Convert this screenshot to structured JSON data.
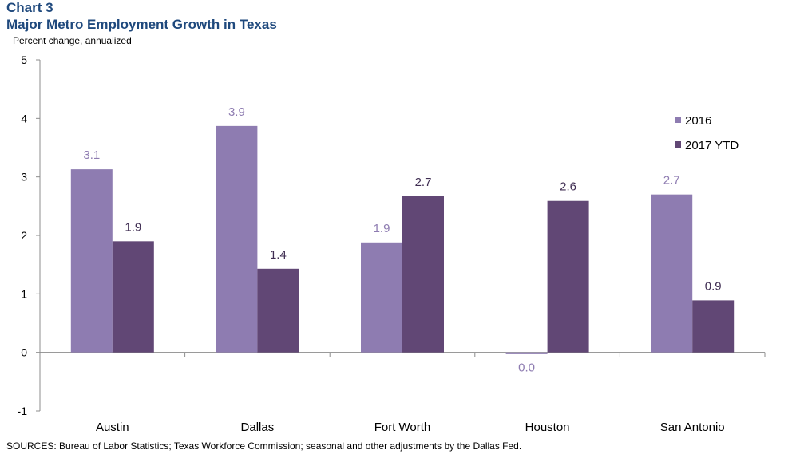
{
  "header": {
    "chart_number": "Chart 3",
    "title": "Major Metro Employment Growth in Texas",
    "unit": "Percent change, annualized"
  },
  "footer": {
    "source": "SOURCES: Bureau of  Labor Statistics; Texas Workforce Commission; seasonal and other adjustments by the Dallas Fed."
  },
  "chart_data": {
    "type": "bar",
    "title": "Major Metro Employment Growth in Texas",
    "ylabel": "Percent change, annualized",
    "xlabel": "",
    "ylim": [
      -1,
      5
    ],
    "yticks": [
      -1,
      0,
      1,
      2,
      3,
      4,
      5
    ],
    "grid": false,
    "legend_position": "right",
    "categories": [
      "Austin",
      "Dallas",
      "Fort Worth",
      "Houston",
      "San Antonio"
    ],
    "series": [
      {
        "name": "2016",
        "color": "#8E7CB1",
        "label_color": "#8E7CB1",
        "values": [
          3.13,
          3.87,
          1.88,
          -0.03,
          2.7
        ],
        "labels": [
          "3.1",
          "3.9",
          "1.9",
          "0.0",
          "2.7"
        ]
      },
      {
        "name": "2017 YTD",
        "color": "#614775",
        "label_color": "#3F2D52",
        "values": [
          1.9,
          1.43,
          2.67,
          2.59,
          0.89
        ],
        "labels": [
          "1.9",
          "1.4",
          "2.7",
          "2.6",
          "0.9"
        ]
      }
    ]
  }
}
